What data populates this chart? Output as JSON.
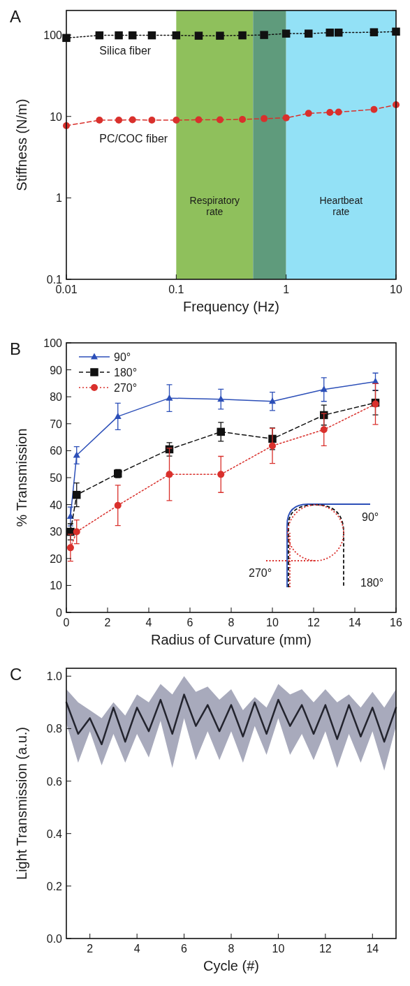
{
  "chart_data": [
    {
      "type": "line",
      "title": "A",
      "xlabel": "Frequency (Hz)",
      "ylabel": "Stiffness (N/m)",
      "log": "xy",
      "xlim": [
        0.01,
        10
      ],
      "ylim": [
        0.1,
        200
      ],
      "xticks": [
        0.01,
        0.1,
        1,
        10
      ],
      "yticks": [
        0.1,
        1,
        10,
        100
      ],
      "legend": false,
      "grid": false,
      "x": [
        0.01,
        0.02,
        0.03,
        0.04,
        0.06,
        0.1,
        0.16,
        0.25,
        0.4,
        0.63,
        1,
        1.6,
        2.5,
        3,
        6.3,
        10
      ],
      "bands": [
        {
          "axis": "x",
          "from": 0.1,
          "to": 0.5,
          "label": "Respiratory rate",
          "color": "#8fc05c"
        },
        {
          "axis": "x",
          "from": 0.5,
          "to": 1,
          "color": "#5f9b7c"
        },
        {
          "axis": "x",
          "from": 1,
          "to": 10,
          "label": "Heartbeat rate",
          "color": "#93e1f6"
        }
      ],
      "series": [
        {
          "name": "Silica fiber",
          "color": "#111111",
          "marker": "square",
          "line_style": "dotted",
          "values": [
            92,
            99,
            99,
            99,
            99,
            99,
            98,
            98,
            99,
            100,
            104,
            104,
            107,
            107,
            108,
            110
          ]
        },
        {
          "name": "PC/COC fiber",
          "color": "#d9302c",
          "marker": "circle",
          "line_style": "dashed",
          "values": [
            7.7,
            9.0,
            9.0,
            9.1,
            9.0,
            9.0,
            9.1,
            9.1,
            9.2,
            9.4,
            9.6,
            10.9,
            11.2,
            11.3,
            12.2,
            13.9
          ]
        }
      ]
    },
    {
      "type": "line",
      "title": "B",
      "xlabel": "Radius of Curvature (mm)",
      "ylabel": "% Transmission",
      "xlim": [
        0,
        16
      ],
      "ylim": [
        0,
        100
      ],
      "xticks": [
        0,
        2,
        4,
        6,
        8,
        10,
        12,
        14,
        16
      ],
      "yticks": [
        0,
        10,
        20,
        30,
        40,
        50,
        60,
        70,
        80,
        90,
        100
      ],
      "legend": "top left",
      "grid": false,
      "x": [
        0.2,
        0.5,
        2.5,
        5,
        7.5,
        10,
        12.5,
        15
      ],
      "annotations": [
        "90°",
        "270°",
        "180°"
      ],
      "series": [
        {
          "name": "90°",
          "color": "#2c4fb8",
          "marker": "triangle",
          "line_style": "solid",
          "values": [
            35.6,
            58.3,
            72.7,
            79.5,
            79.1,
            78.3,
            82.7,
            85.6
          ],
          "errors": [
            3.5,
            3.2,
            4.9,
            5,
            3.7,
            3.4,
            4.4,
            3.2
          ]
        },
        {
          "name": "180°",
          "color": "#111111",
          "marker": "square",
          "line_style": "dashed",
          "values": [
            29.9,
            43.6,
            51.5,
            60.5,
            67,
            64.4,
            73.2,
            77.8
          ],
          "errors": [
            3,
            4.4,
            1.5,
            2.5,
            3.5,
            4,
            3.7,
            4.5
          ]
        },
        {
          "name": "270°",
          "color": "#d9302c",
          "marker": "circle",
          "line_style": "dotted",
          "values": [
            24,
            29.9,
            39.7,
            51.2,
            51.2,
            61.8,
            67.8,
            77.3
          ],
          "errors": [
            5,
            4.4,
            7.5,
            9.7,
            6.7,
            6.5,
            6,
            7.6
          ]
        }
      ]
    },
    {
      "type": "line",
      "title": "C",
      "xlabel": "Cycle (#)",
      "ylabel": "Light Transmission (a.u.)",
      "xlim": [
        1,
        15
      ],
      "ylim": [
        0,
        1.03
      ],
      "xticks": [
        2,
        4,
        6,
        8,
        10,
        12,
        14
      ],
      "yticks": [
        {
          "value": 0,
          "label": "0.0"
        },
        0.2,
        0.4,
        0.6,
        0.8,
        {
          "value": 1,
          "label": "1.0"
        }
      ],
      "legend": false,
      "grid": false,
      "marker": "none",
      "line_style": "solid",
      "x": [
        1,
        1.5,
        2,
        2.5,
        3,
        3.5,
        4,
        4.5,
        5,
        5.5,
        6,
        6.5,
        7,
        7.5,
        8,
        8.5,
        9,
        9.5,
        10,
        10.5,
        11,
        11.5,
        12,
        12.5,
        13,
        13.5,
        14,
        14.5,
        15
      ],
      "series": [
        {
          "color": "#23242e",
          "values": [
            0.9,
            0.78,
            0.84,
            0.74,
            0.88,
            0.75,
            0.88,
            0.79,
            0.91,
            0.78,
            0.93,
            0.81,
            0.89,
            0.79,
            0.89,
            0.77,
            0.9,
            0.78,
            0.91,
            0.81,
            0.89,
            0.78,
            0.89,
            0.76,
            0.89,
            0.77,
            0.88,
            0.75,
            0.88
          ],
          "upper": [
            0.95,
            0.9,
            0.87,
            0.84,
            0.9,
            0.85,
            0.93,
            0.9,
            0.97,
            0.93,
            1.0,
            0.94,
            0.96,
            0.91,
            0.95,
            0.87,
            0.92,
            0.88,
            0.97,
            0.93,
            0.95,
            0.9,
            0.95,
            0.9,
            0.93,
            0.88,
            0.94,
            0.88,
            0.95
          ],
          "lower": [
            0.82,
            0.67,
            0.79,
            0.66,
            0.78,
            0.67,
            0.78,
            0.69,
            0.83,
            0.65,
            0.84,
            0.68,
            0.79,
            0.68,
            0.79,
            0.67,
            0.81,
            0.7,
            0.84,
            0.7,
            0.78,
            0.68,
            0.79,
            0.65,
            0.78,
            0.67,
            0.79,
            0.64,
            0.81
          ]
        }
      ]
    }
  ]
}
